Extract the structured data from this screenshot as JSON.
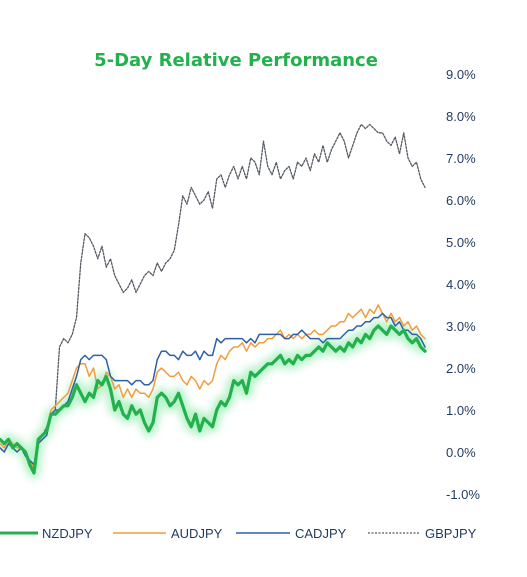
{
  "chart_data": {
    "type": "line",
    "title": "5-Day Relative Performance",
    "xlabel": "",
    "ylabel": "",
    "ylim": [
      -1.0,
      9.0
    ],
    "y_axis_side": "right",
    "yticks": [
      "9.0%",
      "8.0%",
      "7.0%",
      "6.0%",
      "5.0%",
      "4.0%",
      "3.0%",
      "2.0%",
      "1.0%",
      "0.0%",
      "-1.0%"
    ],
    "ytick_values": [
      9,
      8,
      7,
      6,
      5,
      4,
      3,
      2,
      1,
      0,
      -1
    ],
    "grid": false,
    "legend_position": "bottom",
    "x": [
      0,
      1,
      2,
      3,
      4,
      5,
      6,
      7,
      8,
      9,
      10,
      11,
      12,
      13,
      14,
      15,
      16,
      17,
      18,
      19,
      20,
      21,
      22,
      23,
      24,
      25,
      26,
      27,
      28,
      29,
      30,
      31,
      32,
      33,
      34,
      35,
      36,
      37,
      38,
      39,
      40,
      41,
      42,
      43,
      44,
      45,
      46,
      47,
      48,
      49,
      50,
      51,
      52,
      53,
      54,
      55,
      56,
      57,
      58,
      59,
      60,
      61,
      62,
      63,
      64,
      65,
      66,
      67,
      68,
      69,
      70,
      71,
      72,
      73,
      74,
      75,
      76,
      77,
      78,
      79,
      80,
      81,
      82,
      83,
      84,
      85,
      86,
      87,
      88,
      89,
      90,
      91,
      92,
      93,
      94,
      95,
      96,
      97,
      98,
      99,
      100
    ],
    "series": [
      {
        "name": "NZDJPY",
        "color": "#22b14c",
        "style": "solid-glow",
        "values": [
          0.3,
          0.2,
          0.3,
          0.1,
          0.2,
          0.1,
          0.0,
          -0.3,
          -0.5,
          0.3,
          0.4,
          0.5,
          0.9,
          0.9,
          1.0,
          1.1,
          1.1,
          1.3,
          1.6,
          1.4,
          1.2,
          1.4,
          1.3,
          1.7,
          1.6,
          1.8,
          1.5,
          1.0,
          1.2,
          0.9,
          0.8,
          1.1,
          0.9,
          1.0,
          0.7,
          0.5,
          0.7,
          1.3,
          1.4,
          1.3,
          1.1,
          1.2,
          1.4,
          1.1,
          0.8,
          0.6,
          0.9,
          0.5,
          0.8,
          0.7,
          0.6,
          1.0,
          1.2,
          1.1,
          1.3,
          1.7,
          1.6,
          1.7,
          1.4,
          1.9,
          1.8,
          1.9,
          2.0,
          2.1,
          2.1,
          2.2,
          2.3,
          2.1,
          2.2,
          2.1,
          2.3,
          2.2,
          2.3,
          2.3,
          2.4,
          2.5,
          2.4,
          2.6,
          2.5,
          2.4,
          2.5,
          2.4,
          2.6,
          2.5,
          2.7,
          2.6,
          2.8,
          2.7,
          2.9,
          3.0,
          2.9,
          2.8,
          3.0,
          2.9,
          2.8,
          2.9,
          2.7,
          2.6,
          2.7,
          2.5,
          2.4
        ]
      },
      {
        "name": "AUDJPY",
        "color": "#f39c3a",
        "style": "solid",
        "values": [
          0.2,
          0.1,
          0.3,
          0.2,
          0.1,
          0.1,
          0.0,
          -0.2,
          -0.4,
          0.2,
          0.4,
          0.5,
          1.0,
          1.1,
          1.2,
          1.3,
          1.4,
          1.7,
          2.0,
          2.1,
          2.1,
          1.8,
          2.0,
          1.5,
          1.6,
          1.9,
          1.8,
          1.5,
          1.6,
          1.3,
          1.5,
          1.3,
          1.5,
          1.4,
          1.4,
          1.3,
          1.5,
          1.9,
          2.0,
          1.9,
          1.8,
          1.8,
          1.9,
          1.7,
          1.6,
          1.8,
          1.7,
          1.5,
          1.7,
          1.6,
          1.7,
          2.1,
          2.3,
          2.2,
          2.4,
          2.5,
          2.5,
          2.6,
          2.4,
          2.6,
          2.5,
          2.6,
          2.6,
          2.7,
          2.7,
          2.8,
          2.9,
          2.7,
          2.8,
          2.7,
          2.8,
          2.7,
          2.8,
          2.8,
          2.9,
          2.8,
          2.8,
          2.9,
          3.0,
          3.0,
          3.1,
          3.1,
          3.3,
          3.2,
          3.3,
          3.4,
          3.2,
          3.4,
          3.3,
          3.5,
          3.3,
          3.1,
          3.3,
          3.1,
          3.2,
          3.0,
          3.1,
          2.9,
          3.0,
          2.8,
          2.7
        ]
      },
      {
        "name": "CADJPY",
        "color": "#2e5fa8",
        "style": "solid",
        "values": [
          0.1,
          0.0,
          0.2,
          0.1,
          0.0,
          0.1,
          -0.1,
          -0.2,
          -0.3,
          0.2,
          0.3,
          0.4,
          0.9,
          1.0,
          1.0,
          1.1,
          1.2,
          1.5,
          1.8,
          2.2,
          2.3,
          2.2,
          2.3,
          2.3,
          2.3,
          2.2,
          1.8,
          1.7,
          1.7,
          1.7,
          1.7,
          1.6,
          1.7,
          1.7,
          1.6,
          1.6,
          1.7,
          2.2,
          2.4,
          2.4,
          2.3,
          2.3,
          2.2,
          2.4,
          2.3,
          2.3,
          2.4,
          2.2,
          2.4,
          2.3,
          2.3,
          2.7,
          2.6,
          2.7,
          2.7,
          2.7,
          2.7,
          2.7,
          2.6,
          2.7,
          2.6,
          2.8,
          2.8,
          2.8,
          2.8,
          2.8,
          2.8,
          2.7,
          2.7,
          2.8,
          2.8,
          2.9,
          2.8,
          2.7,
          2.7,
          2.7,
          2.6,
          2.7,
          2.7,
          2.7,
          2.7,
          2.8,
          2.9,
          2.9,
          3.0,
          3.0,
          3.1,
          3.1,
          3.2,
          3.2,
          3.3,
          3.2,
          3.2,
          3.0,
          3.1,
          2.9,
          2.9,
          2.8,
          2.8,
          2.7,
          2.5
        ]
      },
      {
        "name": "GBPJPY",
        "color": "#555a63",
        "style": "dotted",
        "values": [
          0.3,
          0.2,
          0.3,
          0.1,
          0.2,
          0.1,
          0.0,
          -0.2,
          -0.3,
          0.3,
          0.4,
          0.6,
          0.9,
          1.0,
          2.5,
          2.7,
          2.6,
          2.8,
          3.2,
          4.5,
          5.2,
          5.1,
          4.9,
          4.6,
          4.9,
          4.4,
          4.6,
          4.2,
          4.0,
          3.8,
          3.9,
          4.1,
          3.8,
          4.0,
          4.2,
          4.3,
          4.2,
          4.5,
          4.3,
          4.5,
          4.6,
          4.8,
          5.4,
          6.1,
          5.9,
          6.3,
          6.1,
          5.9,
          6.0,
          6.2,
          5.8,
          6.5,
          6.6,
          6.3,
          6.6,
          6.8,
          6.5,
          6.8,
          6.5,
          7.0,
          6.9,
          6.6,
          7.4,
          6.8,
          6.6,
          6.9,
          6.5,
          6.7,
          6.8,
          6.5,
          6.9,
          6.8,
          7.0,
          6.7,
          7.1,
          6.9,
          7.3,
          6.9,
          7.2,
          7.4,
          7.6,
          7.4,
          7.0,
          7.3,
          7.6,
          7.8,
          7.7,
          7.8,
          7.7,
          7.6,
          7.6,
          7.4,
          7.3,
          7.5,
          7.1,
          7.6,
          7.0,
          6.8,
          6.9,
          6.5,
          6.3
        ]
      }
    ]
  }
}
